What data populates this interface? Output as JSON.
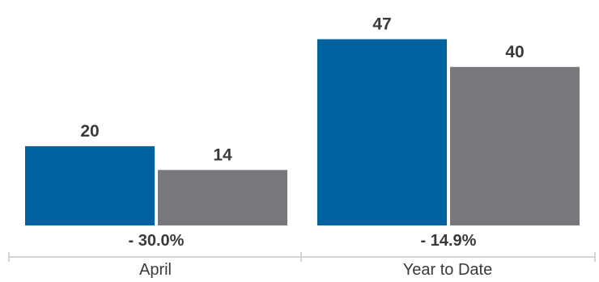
{
  "chart_data": {
    "type": "bar",
    "categories": [
      "April",
      "Year to Date"
    ],
    "series": [
      {
        "values": [
          20,
          47
        ]
      },
      {
        "values": [
          14,
          40
        ]
      }
    ],
    "change_labels": [
      "- 30.0%",
      "- 14.9%"
    ],
    "ylim": [
      0,
      52
    ],
    "grid": false,
    "colors": [
      "#0063a0",
      "#78777c"
    ],
    "axis_color": "#c9c9c9"
  }
}
